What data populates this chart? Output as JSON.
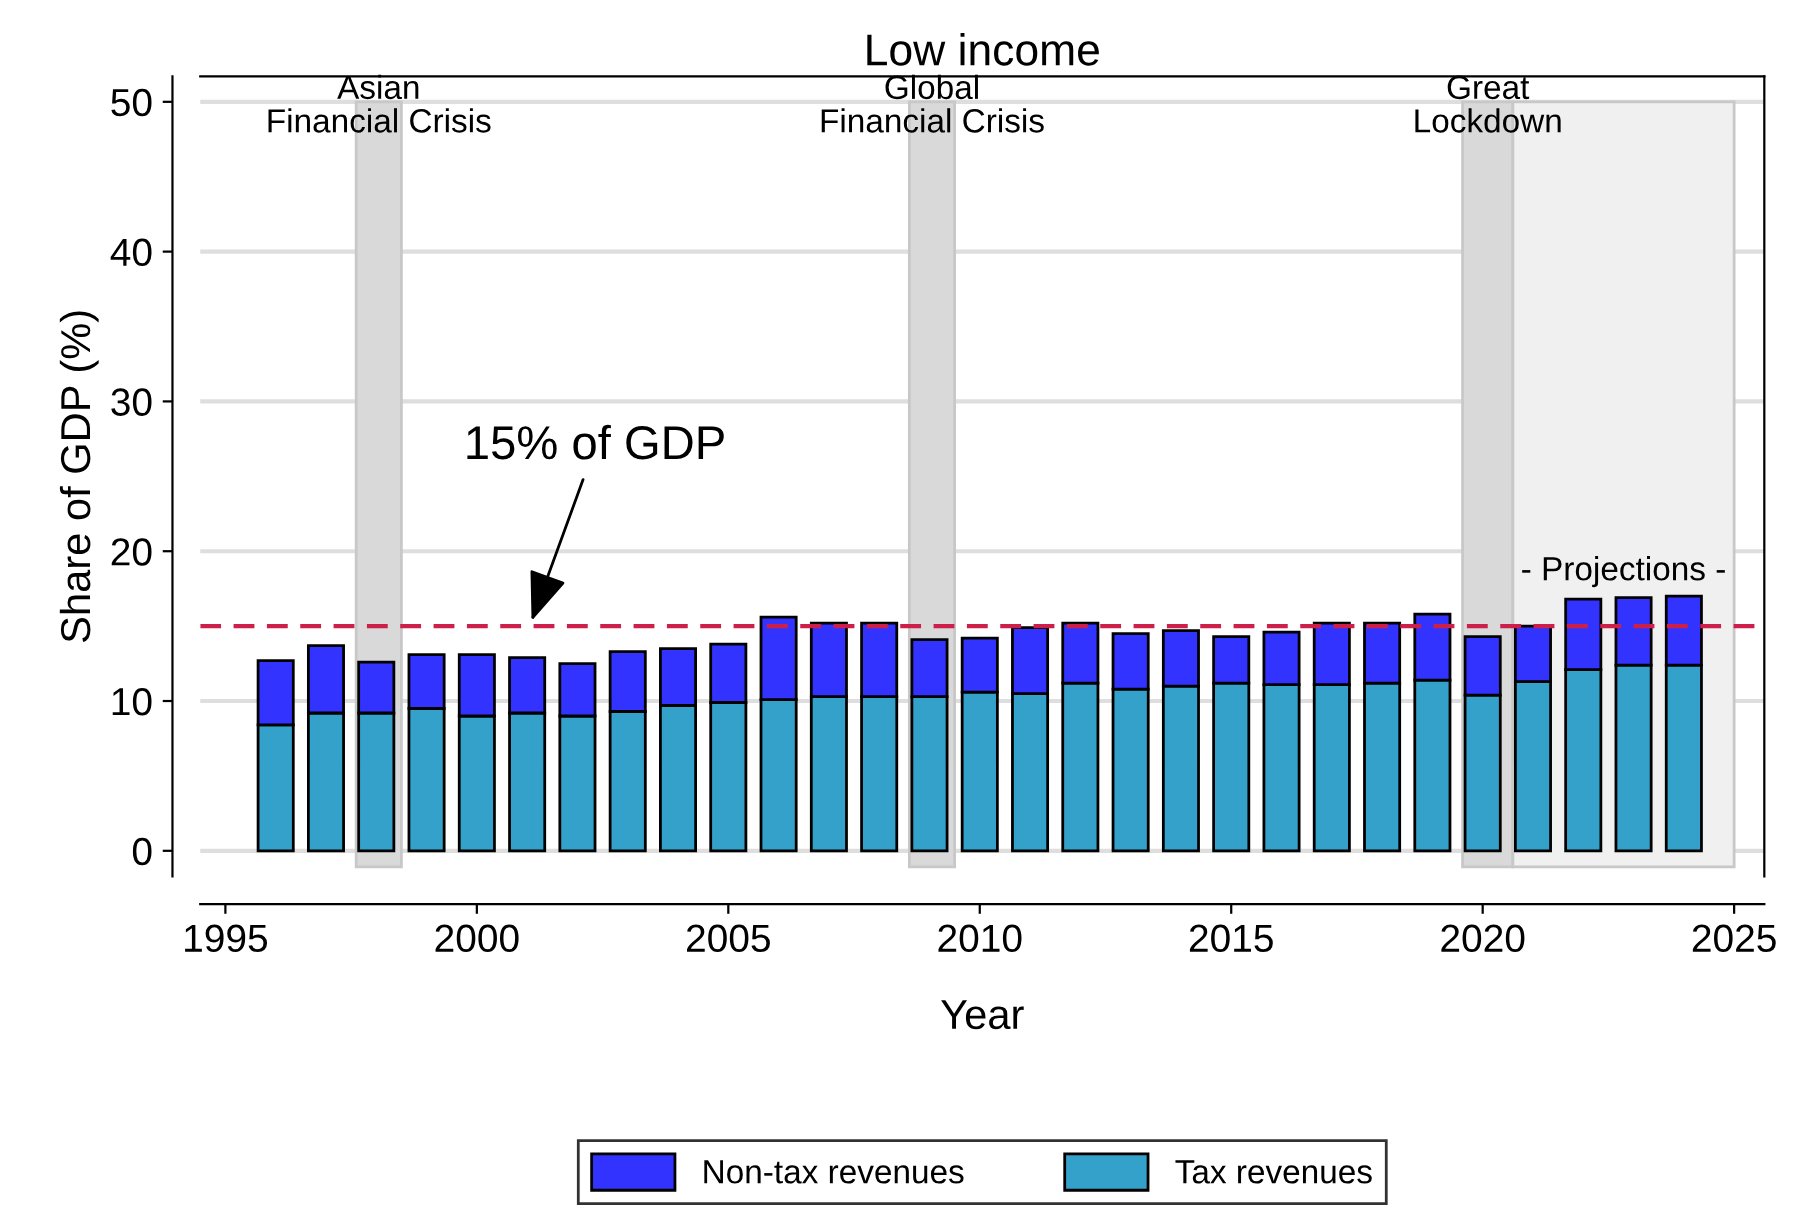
{
  "chart_data": {
    "type": "bar",
    "title": "Low income",
    "xlabel": "Year",
    "ylabel": "Share of GDP (%)",
    "stacked": true,
    "x": [
      1996,
      1997,
      1998,
      1999,
      2000,
      2001,
      2002,
      2003,
      2004,
      2005,
      2006,
      2007,
      2008,
      2009,
      2010,
      2011,
      2012,
      2013,
      2014,
      2015,
      2016,
      2017,
      2018,
      2019,
      2020,
      2021,
      2022,
      2023,
      2024
    ],
    "series": [
      {
        "name": "Tax revenues",
        "color": "#33a1c9",
        "values": [
          8.4,
          9.2,
          9.2,
          9.5,
          9.0,
          9.2,
          9.0,
          9.3,
          9.7,
          9.9,
          10.1,
          10.3,
          10.3,
          10.3,
          10.6,
          10.5,
          11.2,
          10.8,
          11.0,
          11.2,
          11.1,
          11.1,
          11.2,
          11.4,
          10.4,
          11.3,
          12.1,
          12.4,
          12.4
        ]
      },
      {
        "name": "Non-tax revenues",
        "color": "#3333ff",
        "values": [
          4.3,
          4.5,
          3.4,
          3.6,
          4.1,
          3.7,
          3.5,
          4.0,
          3.8,
          3.9,
          5.5,
          4.9,
          4.9,
          3.8,
          3.6,
          4.4,
          4.0,
          3.7,
          3.7,
          3.1,
          3.5,
          4.1,
          4.0,
          4.4,
          3.9,
          3.7,
          4.7,
          4.5,
          4.6
        ]
      }
    ],
    "xlim": [
      1994.5,
      2025.6
    ],
    "ylim": [
      -1.7,
      51.7
    ],
    "xticks": [
      1995,
      2000,
      2005,
      2010,
      2015,
      2020,
      2025
    ],
    "yticks": [
      0,
      10,
      20,
      30,
      40,
      50
    ],
    "grid": "y",
    "legend": "bottom",
    "ref_lines": [
      {
        "axis": "y",
        "value": 15,
        "color": "#cc1f4a",
        "line_style": "dashed"
      }
    ],
    "bands": [
      {
        "axis": "x",
        "from": 1997.6,
        "to": 1998.5,
        "label": "Asian\nFinancial Crisis",
        "color": "#d9d9d9"
      },
      {
        "axis": "x",
        "from": 2008.6,
        "to": 2009.5,
        "label": "Global\nFinancial Crisis",
        "color": "#d9d9d9"
      },
      {
        "axis": "x",
        "from": 2019.6,
        "to": 2020.6,
        "label": "Great\nLockdown",
        "color": "#d9d9d9"
      },
      {
        "axis": "x",
        "from": 2020.6,
        "to": 2025,
        "label": "- Projections -",
        "color": "#f0f0f0"
      }
    ],
    "annotations": [
      {
        "text": "15% of GDP",
        "x": 2001.05,
        "y": 15
      }
    ]
  }
}
